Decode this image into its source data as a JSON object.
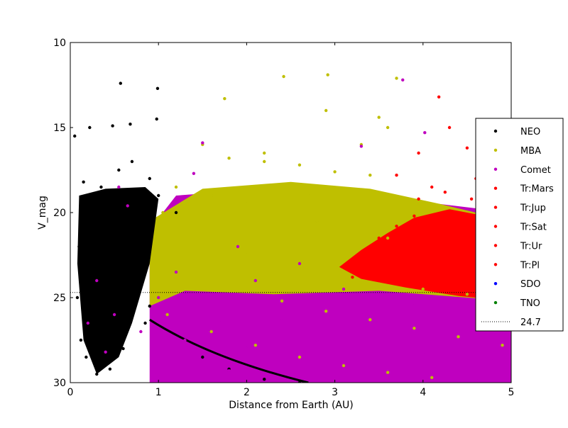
{
  "chart_data": {
    "type": "scatter",
    "title": "",
    "xlabel": "Distance from Earth (AU)",
    "ylabel": "V_mag",
    "xlim": [
      0,
      5
    ],
    "ylim": [
      30,
      10
    ],
    "y_inverted": true,
    "xticks": [
      0,
      1,
      2,
      3,
      4,
      5
    ],
    "yticks": [
      10,
      15,
      20,
      25,
      30
    ],
    "grid": false,
    "legend_position": "right, outside plot area",
    "reference_line": {
      "label": "24.7",
      "y": 24.7,
      "style": "dotted",
      "color": "#000000"
    },
    "series": [
      {
        "name": "NEO",
        "color": "#000000",
        "points": [
          [
            0.05,
            15.5
          ],
          [
            0.22,
            15.0
          ],
          [
            0.57,
            12.4
          ],
          [
            0.68,
            14.8
          ],
          [
            0.99,
            12.7
          ],
          [
            0.98,
            14.5
          ],
          [
            0.48,
            14.9
          ],
          [
            0.15,
            18.2
          ],
          [
            0.2,
            20.5
          ],
          [
            0.25,
            22.0
          ],
          [
            0.3,
            23.5
          ],
          [
            0.35,
            24.5
          ],
          [
            0.4,
            25.5
          ],
          [
            0.45,
            26.0
          ],
          [
            0.5,
            26.8
          ],
          [
            0.55,
            25.0
          ],
          [
            0.6,
            23.0
          ],
          [
            0.65,
            21.0
          ],
          [
            0.7,
            19.5
          ],
          [
            0.75,
            22.5
          ],
          [
            0.8,
            24.0
          ],
          [
            0.85,
            26.5
          ],
          [
            0.9,
            25.5
          ],
          [
            0.12,
            27.5
          ],
          [
            0.18,
            28.5
          ],
          [
            0.3,
            29.5
          ],
          [
            0.45,
            29.2
          ],
          [
            0.6,
            28.0
          ],
          [
            0.1,
            22.0
          ],
          [
            0.08,
            25.0
          ],
          [
            0.2,
            26.0
          ],
          [
            0.4,
            22.0
          ],
          [
            0.5,
            20.5
          ],
          [
            0.35,
            18.5
          ],
          [
            0.55,
            17.5
          ],
          [
            0.7,
            17.0
          ],
          [
            0.9,
            18.0
          ],
          [
            1.0,
            19.0
          ],
          [
            1.2,
            20.0
          ],
          [
            1.5,
            28.5
          ],
          [
            1.8,
            29.2
          ],
          [
            2.2,
            29.8
          ],
          [
            2.6,
            30.0
          ],
          [
            0.28,
            25.8
          ],
          [
            0.42,
            26.5
          ],
          [
            0.38,
            24.8
          ],
          [
            0.32,
            27.2
          ],
          [
            0.62,
            26.2
          ]
        ]
      },
      {
        "name": "MBA",
        "color": "#bfbf00",
        "points": [
          [
            2.42,
            12.0
          ],
          [
            2.92,
            11.9
          ],
          [
            3.7,
            12.1
          ],
          [
            1.75,
            13.3
          ],
          [
            2.9,
            14.0
          ],
          [
            3.5,
            14.4
          ],
          [
            1.5,
            16.0
          ],
          [
            1.8,
            16.8
          ],
          [
            2.2,
            17.0
          ],
          [
            2.6,
            17.2
          ],
          [
            3.0,
            17.6
          ],
          [
            3.4,
            17.8
          ],
          [
            1.2,
            18.5
          ],
          [
            1.6,
            19.0
          ],
          [
            2.0,
            19.5
          ],
          [
            2.4,
            20.0
          ],
          [
            2.8,
            20.5
          ],
          [
            3.2,
            21.0
          ],
          [
            3.6,
            21.5
          ],
          [
            1.1,
            21.5
          ],
          [
            1.5,
            22.0
          ],
          [
            2.0,
            22.5
          ],
          [
            2.5,
            23.0
          ],
          [
            3.0,
            23.8
          ],
          [
            3.5,
            24.2
          ],
          [
            4.0,
            24.5
          ],
          [
            4.5,
            24.8
          ],
          [
            1.3,
            24.0
          ],
          [
            1.9,
            24.6
          ],
          [
            2.4,
            25.2
          ],
          [
            2.9,
            25.8
          ],
          [
            3.4,
            26.3
          ],
          [
            3.9,
            26.8
          ],
          [
            4.4,
            27.3
          ],
          [
            4.9,
            27.8
          ],
          [
            1.1,
            26.0
          ],
          [
            1.6,
            27.0
          ],
          [
            2.1,
            27.8
          ],
          [
            2.6,
            28.5
          ],
          [
            3.1,
            29.0
          ],
          [
            3.6,
            29.4
          ],
          [
            4.1,
            29.7
          ],
          [
            0.95,
            23.0
          ],
          [
            1.05,
            20.0
          ],
          [
            2.2,
            16.5
          ],
          [
            3.6,
            15.0
          ],
          [
            3.3,
            16.0
          ],
          [
            2.7,
            19.0
          ]
        ]
      },
      {
        "name": "Comet",
        "color": "#bf00bf",
        "points": [
          [
            3.77,
            12.2
          ],
          [
            1.4,
            17.7
          ],
          [
            0.55,
            18.5
          ],
          [
            1.5,
            15.9
          ],
          [
            4.02,
            15.3
          ],
          [
            3.3,
            16.1
          ],
          [
            0.65,
            19.6
          ],
          [
            0.3,
            24.0
          ],
          [
            0.5,
            26.0
          ],
          [
            0.8,
            27.0
          ],
          [
            1.0,
            25.0
          ],
          [
            1.3,
            27.5
          ],
          [
            1.7,
            26.5
          ],
          [
            2.0,
            28.0
          ],
          [
            2.4,
            26.2
          ],
          [
            2.8,
            27.5
          ],
          [
            3.2,
            28.8
          ],
          [
            3.6,
            27.0
          ],
          [
            4.0,
            28.3
          ],
          [
            4.4,
            29.1
          ],
          [
            4.8,
            28.6
          ],
          [
            1.5,
            29.0
          ],
          [
            2.2,
            29.6
          ],
          [
            3.0,
            29.8
          ],
          [
            3.8,
            29.5
          ],
          [
            4.6,
            29.8
          ],
          [
            1.2,
            23.5
          ],
          [
            2.1,
            24.0
          ],
          [
            2.7,
            25.0
          ],
          [
            3.3,
            26.0
          ],
          [
            3.9,
            25.5
          ],
          [
            4.5,
            26.5
          ],
          [
            4.9,
            25.8
          ],
          [
            1.9,
            22.0
          ],
          [
            2.6,
            23.0
          ],
          [
            3.1,
            24.5
          ],
          [
            0.2,
            26.5
          ],
          [
            0.4,
            28.2
          ],
          [
            1.0,
            28.8
          ],
          [
            1.8,
            29.3
          ],
          [
            2.5,
            29.9
          ],
          [
            4.2,
            27.8
          ]
        ]
      },
      {
        "name": "Tr:Mars",
        "color": "#ff0000",
        "points": [
          [
            4.18,
            13.2
          ],
          [
            4.3,
            15.0
          ],
          [
            3.95,
            16.5
          ],
          [
            4.5,
            16.2
          ],
          [
            3.7,
            17.8
          ],
          [
            4.1,
            18.5
          ],
          [
            4.6,
            18.0
          ],
          [
            3.3,
            22.5
          ],
          [
            3.5,
            21.5
          ],
          [
            3.7,
            20.8
          ],
          [
            3.9,
            20.2
          ],
          [
            4.1,
            20.5
          ],
          [
            4.3,
            20.0
          ],
          [
            4.5,
            20.4
          ],
          [
            4.7,
            21.0
          ],
          [
            4.9,
            21.5
          ],
          [
            3.4,
            23.5
          ],
          [
            3.6,
            23.0
          ],
          [
            3.8,
            22.5
          ],
          [
            4.0,
            22.0
          ],
          [
            4.2,
            22.3
          ],
          [
            4.4,
            22.0
          ],
          [
            4.6,
            22.6
          ],
          [
            4.8,
            23.0
          ],
          [
            3.2,
            23.8
          ],
          [
            3.5,
            24.0
          ],
          [
            3.8,
            24.2
          ],
          [
            4.1,
            24.5
          ],
          [
            4.4,
            24.6
          ],
          [
            4.7,
            24.8
          ],
          [
            4.9,
            25.0
          ],
          [
            3.95,
            19.2
          ],
          [
            4.25,
            18.8
          ],
          [
            4.55,
            19.2
          ],
          [
            4.85,
            19.6
          ],
          [
            3.1,
            23.2
          ],
          [
            3.55,
            22.2
          ],
          [
            4.65,
            23.8
          ],
          [
            4.05,
            23.5
          ],
          [
            4.35,
            23.2
          ]
        ]
      },
      {
        "name": "Tr:Jup",
        "color": "#ff0000",
        "points": []
      },
      {
        "name": "Tr:Sat",
        "color": "#ff0000",
        "points": []
      },
      {
        "name": "Tr:Ur",
        "color": "#ff0000",
        "points": []
      },
      {
        "name": "Tr:Pl",
        "color": "#ff0000",
        "points": []
      },
      {
        "name": "SDO",
        "color": "#0000ff",
        "points": []
      },
      {
        "name": "TNO",
        "color": "#008000",
        "points": []
      }
    ]
  }
}
